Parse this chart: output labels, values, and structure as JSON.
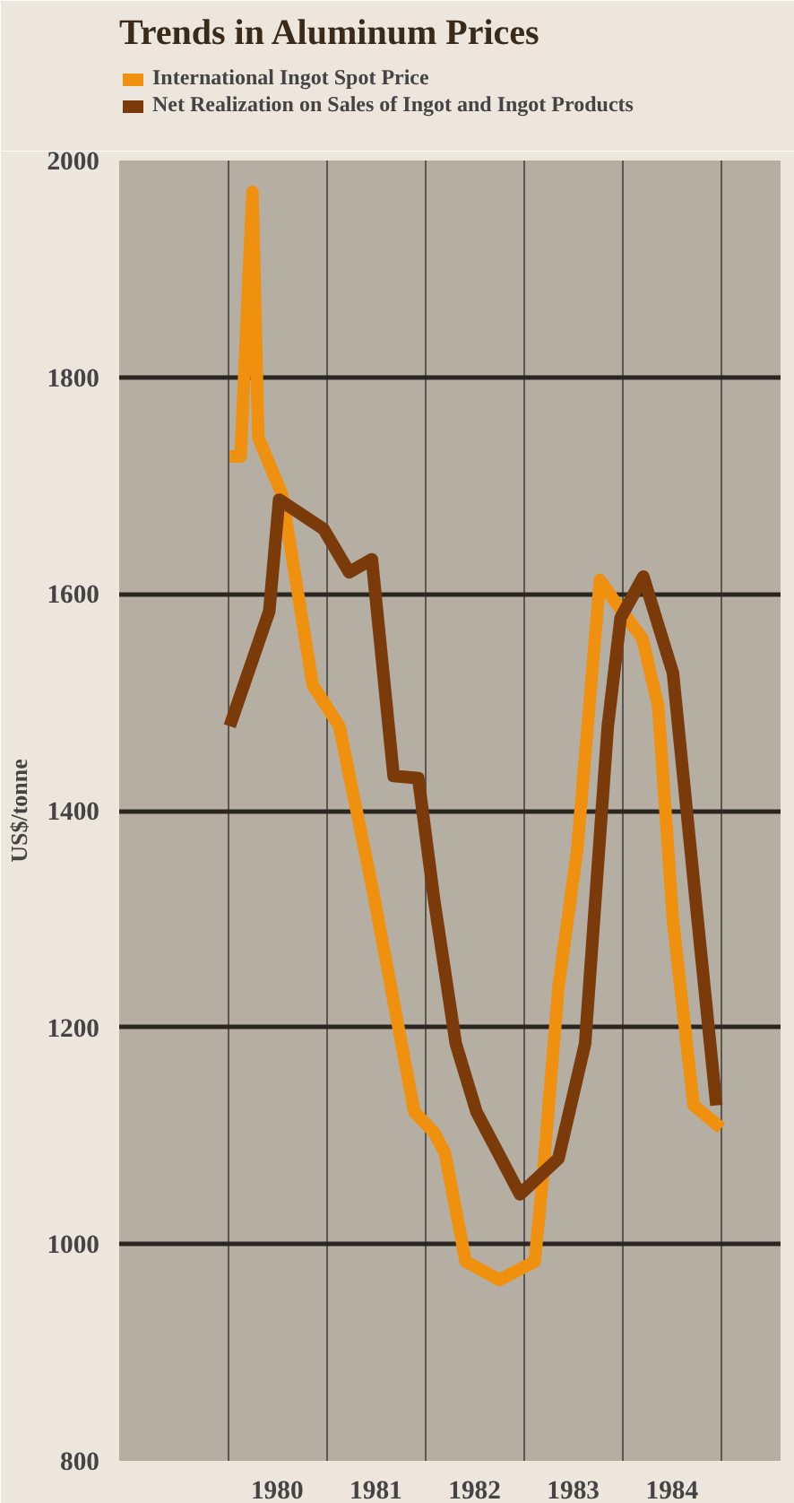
{
  "chart_data": {
    "type": "line",
    "title": "Trends in Aluminum Prices",
    "ylabel": "US$/tonne",
    "xlim": [
      1978.9,
      1985.6
    ],
    "ylim": [
      800,
      2000
    ],
    "xticks": [
      {
        "value": 1980,
        "label": null
      },
      {
        "value": 1980.5,
        "label": "1980"
      },
      {
        "value": 1981,
        "label": null
      },
      {
        "value": 1981.5,
        "label": "1981"
      },
      {
        "value": 1982,
        "label": null
      },
      {
        "value": 1982.5,
        "label": "1982"
      },
      {
        "value": 1983,
        "label": null
      },
      {
        "value": 1983.5,
        "label": "1983"
      },
      {
        "value": 1984,
        "label": null
      },
      {
        "value": 1984.5,
        "label": "1984"
      },
      {
        "value": 1985,
        "label": null
      }
    ],
    "yticks": [
      800,
      1000,
      1200,
      1400,
      1600,
      1800,
      2000
    ],
    "grid": true,
    "legend": "top",
    "marker": "none",
    "line_style": "solid",
    "series": [
      {
        "name": "International Ingot Spot Price",
        "color": "#f0900f",
        "x": [
          1980.02,
          1980.13,
          1980.25,
          1980.31,
          1980.55,
          1980.86,
          1981.13,
          1981.46,
          1981.89,
          1982.09,
          1982.2,
          1982.41,
          1982.75,
          1983.11,
          1983.19,
          1983.35,
          1983.54,
          1983.77,
          1983.93,
          1984.2,
          1984.36,
          1984.51,
          1984.72,
          1985.0
        ],
        "values": [
          1727,
          1727,
          1971,
          1744,
          1692,
          1516,
          1478,
          1331,
          1122,
          1103,
          1084,
          984,
          967,
          984,
          1060,
          1237,
          1364,
          1613,
          1592,
          1559,
          1497,
          1299,
          1128,
          1107
        ]
      },
      {
        "name": "Net Realization on Sales of Ingot and Ingot Products",
        "color": "#7a3a0a",
        "x": [
          1980.02,
          1980.42,
          1980.52,
          1980.97,
          1981.23,
          1981.46,
          1981.68,
          1981.93,
          1982.09,
          1982.31,
          1982.52,
          1982.96,
          1983.35,
          1983.62,
          1983.85,
          1983.98,
          1984.21,
          1984.51,
          1984.76,
          1984.95
        ],
        "values": [
          1478,
          1584,
          1687,
          1660,
          1620,
          1632,
          1432,
          1430,
          1318,
          1185,
          1122,
          1046,
          1079,
          1185,
          1478,
          1578,
          1616,
          1527,
          1299,
          1128
        ]
      }
    ]
  }
}
